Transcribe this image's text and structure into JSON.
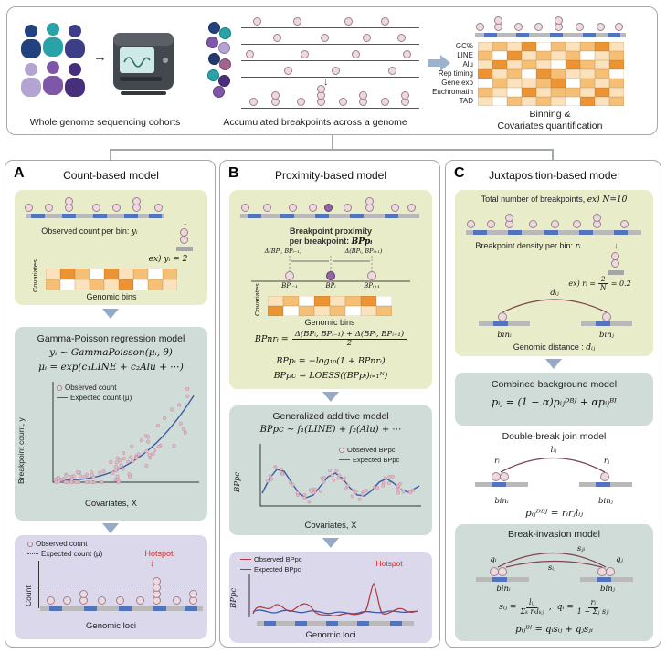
{
  "colors": {
    "hotspot_red": "#d42a2a",
    "observed_pink": "#efd9de",
    "expected_blue": "#3d5aa8",
    "observed_line_red": "#b03540",
    "bin_blue": "#5273bd",
    "box_yellow": "#e9ecc9",
    "box_teal": "#cfdcd7",
    "box_purple": "#dbd8ec",
    "heatmap_palette": [
      "#ffffff",
      "#fbe2bd",
      "#f5bf75",
      "#ec9333"
    ]
  },
  "top": {
    "cohort_label": "Whole genome sequencing cohorts",
    "accumulation_label": "Accumulated breakpoints across a genome",
    "binning_line1": "Binning &",
    "binning_line2": "Covariates quantification",
    "covariate_rows": [
      "GC%",
      "LINE",
      "Alu",
      "Rep timing",
      "Gene exp",
      "Euchromatin",
      "TAD"
    ],
    "heatmap": [
      [
        1,
        2,
        1,
        3,
        0,
        2,
        1,
        2,
        3,
        1
      ],
      [
        2,
        0,
        3,
        1,
        2,
        1,
        2,
        0,
        1,
        2
      ],
      [
        1,
        3,
        1,
        2,
        1,
        0,
        3,
        2,
        1,
        3
      ],
      [
        3,
        1,
        2,
        0,
        3,
        2,
        1,
        1,
        2,
        0
      ],
      [
        0,
        2,
        1,
        1,
        2,
        3,
        0,
        2,
        1,
        2
      ],
      [
        2,
        1,
        0,
        3,
        1,
        2,
        2,
        1,
        3,
        1
      ],
      [
        1,
        0,
        2,
        1,
        2,
        1,
        0,
        3,
        1,
        2
      ]
    ]
  },
  "panel_a": {
    "badge": "A",
    "title": "Count-based model",
    "observed_prefix": "Observed count per bin: ",
    "observed_math": "yᵢ",
    "example": "ex) yᵢ = 2",
    "covariates_label": "Covariates",
    "genomic_bins_label": "Genomic bins",
    "heatmap": [
      [
        1,
        3,
        2,
        0,
        3,
        1,
        2,
        0,
        2
      ],
      [
        2,
        0,
        1,
        2,
        1,
        3,
        0,
        2,
        1
      ]
    ],
    "model_title": "Gamma-Poisson regression model",
    "eq1": "yᵢ ∼ GammaPoisson(μᵢ, θ)",
    "eq2": "μᵢ = exp(c₁LINE + c₂Alu + ⋯)",
    "legend_observed": "Observed count",
    "legend_expected": "Expected count (μ)",
    "plot_ylabel": "Breakpoint count, y",
    "plot_xlabel": "Covariates, X",
    "loci_legend_observed": "Observed count",
    "loci_legend_expected": "Expected count (μ)",
    "hotspot": "Hotspot",
    "loci_ylabel": "Count",
    "loci_xlabel": "Genomic loci"
  },
  "panel_b": {
    "badge": "B",
    "title": "Proximity-based model",
    "prox_line1": "Breakpoint proximity",
    "prox_prefix": "per breakpoint: ",
    "prox_math": "BPpᵢ",
    "delta_left": "Δ(BPᵢ, BPᵢ₋₁)",
    "delta_right": "Δ(BPᵢ, BPᵢ₊₁)",
    "bp_prev": "BPᵢ₋₁",
    "bp_cur": "BPᵢ",
    "bp_next": "BPᵢ₊₁",
    "covariates_label": "Covariates",
    "genomic_bins_label": "Genomic bins",
    "heatmap": [
      [
        1,
        2,
        0,
        3,
        1,
        2,
        3,
        0
      ],
      [
        3,
        0,
        2,
        1,
        2,
        0,
        1,
        2
      ]
    ],
    "eq_bpnr_lhs": "BPnrᵢ =",
    "eq_bpnr_num": "Δ(BPᵢ, BPᵢ₋₁) + Δ(BPᵢ, BPᵢ₊₁)",
    "eq_bpnr_den": "2",
    "eq_bpp": "BPpᵢ = −log₁₀(1 + BPnrᵢ)",
    "eq_bppc": "BPpc = LOESS((BPpᵢ)ᵢ₌₁ᴺ)",
    "model_title": "Generalized additive model",
    "gam_eq": "BPpc ∼ f₁(LINE) + f₂(Alu) + ⋯",
    "gam_legend_observed": "Observed BPpc",
    "gam_legend_expected": "Expected BPpc",
    "gam_ylabel": "BPpc",
    "gam_xlabel": "Covariates, X",
    "loci_legend_observed": "Observed BPpc",
    "loci_legend_expected": "Expected BPpc",
    "hotspot": "Hotspot",
    "loci_ylabel": "BPpc",
    "loci_xlabel": "Genomic loci"
  },
  "panel_c": {
    "badge": "C",
    "title": "Juxtaposition-based model",
    "total_label": "Total number of breakpoints,",
    "total_example": "ex) N=10",
    "density_prefix": "Breakpoint density per bin: ",
    "density_math": "rᵢ",
    "ex_prefix": "ex) rᵢ =",
    "ex_num": "2",
    "ex_den": "N",
    "ex_suffix": "= 0.2",
    "arc_label": "dᵢⱼ",
    "bin_i": "binᵢ",
    "bin_j": "binⱼ",
    "distance_prefix": "Genomic distance : ",
    "distance_math": "dᵢⱼ",
    "combined_title": "Combined background model",
    "combined_eq": "pᵢⱼ = (1 − α)pᵢⱼᴰᴮᴶ + αpᵢⱼᴮᴵ",
    "dbj_title": "Double-break join model",
    "dbj_r_i": "rᵢ",
    "dbj_l_ij": "lᵢⱼ",
    "dbj_r_j": "rⱼ",
    "dbj_bin_i": "binᵢ",
    "dbj_bin_j": "binⱼ",
    "dbj_eq": "pᵢⱼᴰᴮᴶ = rᵢrⱼlᵢⱼ",
    "bi_title": "Break-invasion model",
    "bi_q_i": "qᵢ",
    "bi_s_ji": "sⱼᵢ",
    "bi_q_j": "qⱼ",
    "bi_s_ij": "sᵢⱼ",
    "bi_bin_i": "binᵢ",
    "bi_bin_j": "binⱼ",
    "eq_s_lhs": "sᵢⱼ =",
    "eq_s_num": "lᵢⱼ",
    "eq_s_den": "Σₖ rₖlₖⱼ",
    "eq_comma": ",",
    "eq_q_lhs": "qᵢ =",
    "eq_q_num": "rᵢ",
    "eq_q_den": "1 + Σⱼ sⱼᵢ",
    "bi_eq": "pᵢⱼᴮᴵ = qᵢsᵢⱼ + qⱼsⱼᵢ"
  }
}
